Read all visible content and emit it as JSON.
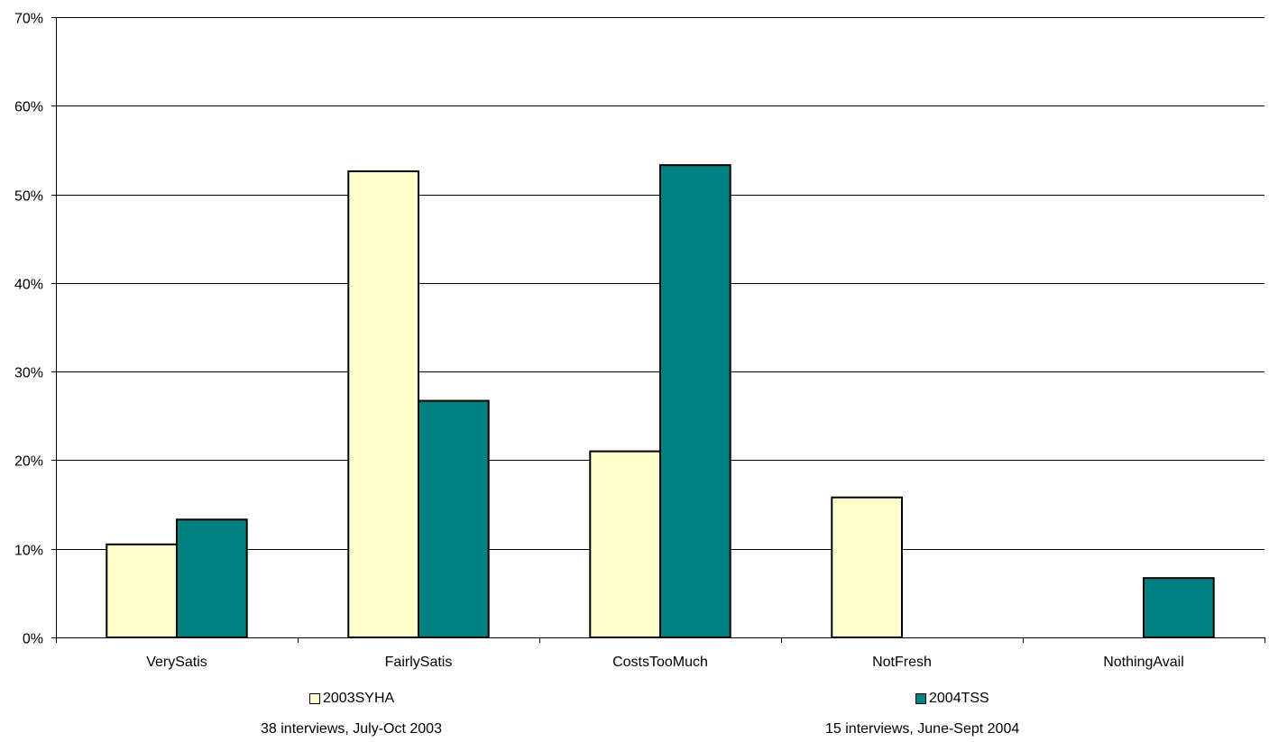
{
  "chart_data": {
    "type": "bar",
    "categories": [
      "VerySatis",
      "FairlySatis",
      "CostsTooMuch",
      "NotFresh",
      "NothingAvail"
    ],
    "series": [
      {
        "name": "2003SYHA",
        "values": [
          10.5,
          52.6,
          21.0,
          15.8,
          0
        ],
        "color": "#FFFFCC"
      },
      {
        "name": "2004TSS",
        "values": [
          13.3,
          26.7,
          53.3,
          0,
          6.7
        ],
        "color": "#008080"
      }
    ],
    "ylim": [
      0,
      70
    ],
    "yticks": [
      0,
      10,
      20,
      30,
      40,
      50,
      60,
      70
    ],
    "ytick_labels": [
      "0%",
      "10%",
      "20%",
      "30%",
      "40%",
      "50%",
      "60%",
      "70%"
    ],
    "grid": true,
    "legend_position": "bottom",
    "notes": [
      "38 interviews, July-Oct 2003",
      "15 interviews, June-Sept 2004"
    ]
  }
}
